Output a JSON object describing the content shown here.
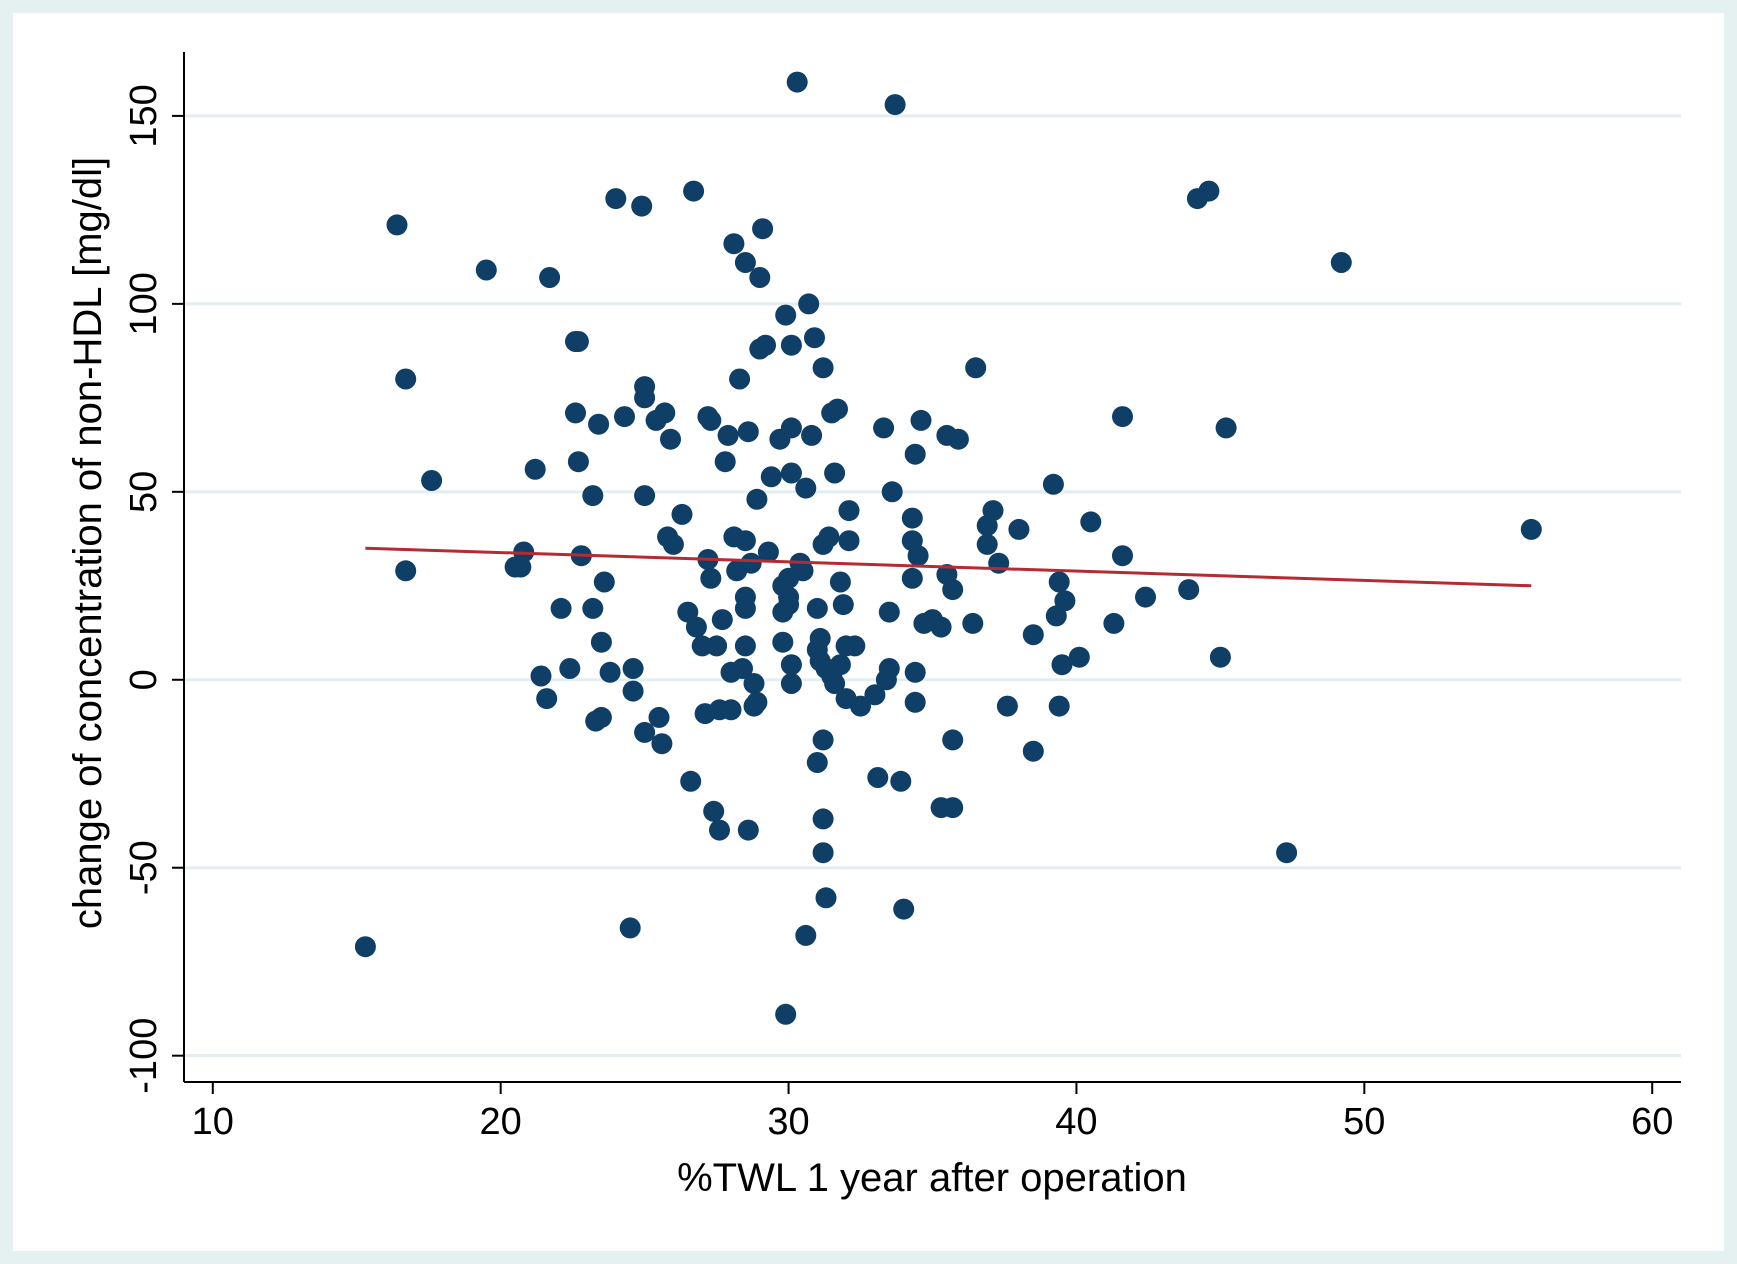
{
  "colors": {
    "outer_background": "#e5f0f0",
    "plot_background": "#ffffff",
    "gridline": "#e3eef0",
    "marker": "#0f3f66",
    "fit_line": "#b52b34",
    "axis": "#000000"
  },
  "chart_data": {
    "type": "scatter",
    "title": "",
    "xlabel": "%TWL 1 year after operation",
    "ylabel": "change of concentration of non-HDL [mg/dl]",
    "xlim": [
      9,
      61
    ],
    "ylim": [
      -107,
      167
    ],
    "x_ticks": [
      10,
      20,
      30,
      40,
      50,
      60
    ],
    "x_tick_labels": [
      "10",
      "20",
      "30",
      "40",
      "50",
      "60"
    ],
    "y_ticks": [
      -100,
      -50,
      0,
      50,
      100,
      150
    ],
    "y_tick_labels": [
      "-100",
      "-50",
      "0",
      "50",
      "100",
      "150"
    ],
    "grid": "horizontal",
    "legend": "none",
    "fit_line": {
      "x": [
        15.3,
        55.8
      ],
      "y": [
        35,
        25
      ]
    },
    "points": [
      [
        15.3,
        -71
      ],
      [
        16.4,
        121
      ],
      [
        16.7,
        80
      ],
      [
        16.7,
        29
      ],
      [
        17.6,
        53
      ],
      [
        19.5,
        109
      ],
      [
        20.5,
        30
      ],
      [
        20.7,
        30
      ],
      [
        20.8,
        34
      ],
      [
        21.2,
        56
      ],
      [
        21.4,
        1
      ],
      [
        21.6,
        -5
      ],
      [
        21.7,
        107
      ],
      [
        22.1,
        19
      ],
      [
        22.4,
        3
      ],
      [
        22.6,
        71
      ],
      [
        22.6,
        90
      ],
      [
        22.7,
        90
      ],
      [
        22.7,
        58
      ],
      [
        22.8,
        33
      ],
      [
        23.2,
        49
      ],
      [
        23.2,
        19
      ],
      [
        23.3,
        -11
      ],
      [
        23.4,
        68
      ],
      [
        23.5,
        -10
      ],
      [
        23.5,
        10
      ],
      [
        23.6,
        26
      ],
      [
        23.8,
        2
      ],
      [
        24.3,
        70
      ],
      [
        24.0,
        128
      ],
      [
        24.5,
        -66
      ],
      [
        24.6,
        3
      ],
      [
        24.6,
        -3
      ],
      [
        24.9,
        126
      ],
      [
        25.0,
        78
      ],
      [
        25.0,
        75
      ],
      [
        25.0,
        49
      ],
      [
        25.0,
        -14
      ],
      [
        25.4,
        69
      ],
      [
        25.5,
        -10
      ],
      [
        25.6,
        -17
      ],
      [
        25.7,
        71
      ],
      [
        25.8,
        38
      ],
      [
        25.9,
        64
      ],
      [
        26.0,
        36
      ],
      [
        26.3,
        44
      ],
      [
        26.5,
        18
      ],
      [
        26.6,
        -27
      ],
      [
        26.7,
        130
      ],
      [
        26.8,
        14
      ],
      [
        27.0,
        9
      ],
      [
        27.1,
        -9
      ],
      [
        27.2,
        70
      ],
      [
        27.2,
        32
      ],
      [
        27.3,
        27
      ],
      [
        27.3,
        69
      ],
      [
        27.4,
        -35
      ],
      [
        27.5,
        9
      ],
      [
        27.6,
        -40
      ],
      [
        27.6,
        -8
      ],
      [
        27.7,
        16
      ],
      [
        27.8,
        58
      ],
      [
        27.9,
        65
      ],
      [
        28.0,
        2
      ],
      [
        28.0,
        -8
      ],
      [
        28.1,
        116
      ],
      [
        28.1,
        38
      ],
      [
        28.2,
        29
      ],
      [
        28.3,
        80
      ],
      [
        28.4,
        3
      ],
      [
        28.5,
        111
      ],
      [
        28.5,
        37
      ],
      [
        28.5,
        22
      ],
      [
        28.5,
        19
      ],
      [
        28.5,
        9
      ],
      [
        28.6,
        66
      ],
      [
        28.6,
        -40
      ],
      [
        28.7,
        31
      ],
      [
        28.8,
        -1
      ],
      [
        28.8,
        -7
      ],
      [
        28.9,
        -6
      ],
      [
        28.9,
        48
      ],
      [
        29.0,
        107
      ],
      [
        29.0,
        88
      ],
      [
        29.1,
        120
      ],
      [
        29.2,
        89
      ],
      [
        29.3,
        34
      ],
      [
        29.4,
        54
      ],
      [
        29.7,
        64
      ],
      [
        29.8,
        10
      ],
      [
        29.8,
        18
      ],
      [
        29.8,
        25
      ],
      [
        29.9,
        -89
      ],
      [
        29.9,
        97
      ],
      [
        30.0,
        27
      ],
      [
        30.0,
        20
      ],
      [
        30.0,
        22
      ],
      [
        30.1,
        89
      ],
      [
        30.1,
        67
      ],
      [
        30.1,
        55
      ],
      [
        30.1,
        4
      ],
      [
        30.1,
        -1
      ],
      [
        30.3,
        159
      ],
      [
        30.4,
        31
      ],
      [
        30.5,
        29
      ],
      [
        30.6,
        51
      ],
      [
        30.6,
        -68
      ],
      [
        30.7,
        100
      ],
      [
        30.8,
        65
      ],
      [
        30.9,
        91
      ],
      [
        31.0,
        8
      ],
      [
        31.0,
        -22
      ],
      [
        31.0,
        19
      ],
      [
        31.1,
        11
      ],
      [
        31.1,
        5
      ],
      [
        31.2,
        -16
      ],
      [
        31.2,
        -37
      ],
      [
        31.2,
        -46
      ],
      [
        31.2,
        83
      ],
      [
        31.2,
        36
      ],
      [
        31.3,
        -58
      ],
      [
        31.3,
        3
      ],
      [
        31.4,
        38
      ],
      [
        31.5,
        71
      ],
      [
        31.5,
        1
      ],
      [
        31.6,
        55
      ],
      [
        31.6,
        -1
      ],
      [
        31.7,
        72
      ],
      [
        31.8,
        4
      ],
      [
        31.8,
        26
      ],
      [
        31.9,
        20
      ],
      [
        32.0,
        9
      ],
      [
        32.0,
        -5
      ],
      [
        32.1,
        45
      ],
      [
        32.1,
        37
      ],
      [
        32.3,
        9
      ],
      [
        32.5,
        -7
      ],
      [
        33.0,
        -4
      ],
      [
        33.1,
        -26
      ],
      [
        33.3,
        67
      ],
      [
        33.4,
        0
      ],
      [
        33.5,
        3
      ],
      [
        33.5,
        18
      ],
      [
        33.6,
        50
      ],
      [
        33.7,
        153
      ],
      [
        33.9,
        -27
      ],
      [
        34.0,
        -61
      ],
      [
        34.3,
        43
      ],
      [
        34.3,
        37
      ],
      [
        34.3,
        27
      ],
      [
        34.4,
        60
      ],
      [
        34.4,
        2
      ],
      [
        34.4,
        -6
      ],
      [
        34.5,
        33
      ],
      [
        34.6,
        69
      ],
      [
        34.7,
        15
      ],
      [
        35.0,
        16
      ],
      [
        35.3,
        14
      ],
      [
        35.3,
        -34
      ],
      [
        35.5,
        65
      ],
      [
        35.5,
        28
      ],
      [
        35.7,
        -34
      ],
      [
        35.7,
        24
      ],
      [
        35.7,
        -16
      ],
      [
        35.9,
        64
      ],
      [
        36.4,
        15
      ],
      [
        36.5,
        83
      ],
      [
        36.9,
        41
      ],
      [
        36.9,
        36
      ],
      [
        37.1,
        45
      ],
      [
        37.3,
        31
      ],
      [
        37.6,
        -7
      ],
      [
        38.0,
        40
      ],
      [
        38.5,
        -19
      ],
      [
        38.5,
        12
      ],
      [
        39.2,
        52
      ],
      [
        39.3,
        17
      ],
      [
        39.4,
        26
      ],
      [
        39.4,
        -7
      ],
      [
        39.5,
        4
      ],
      [
        39.6,
        21
      ],
      [
        40.1,
        6
      ],
      [
        40.5,
        42
      ],
      [
        41.3,
        15
      ],
      [
        41.6,
        33
      ],
      [
        41.6,
        70
      ],
      [
        42.4,
        22
      ],
      [
        43.9,
        24
      ],
      [
        44.2,
        128
      ],
      [
        44.6,
        130
      ],
      [
        45.0,
        6
      ],
      [
        45.2,
        67
      ],
      [
        47.3,
        -46
      ],
      [
        49.2,
        111
      ],
      [
        55.8,
        40
      ]
    ]
  }
}
